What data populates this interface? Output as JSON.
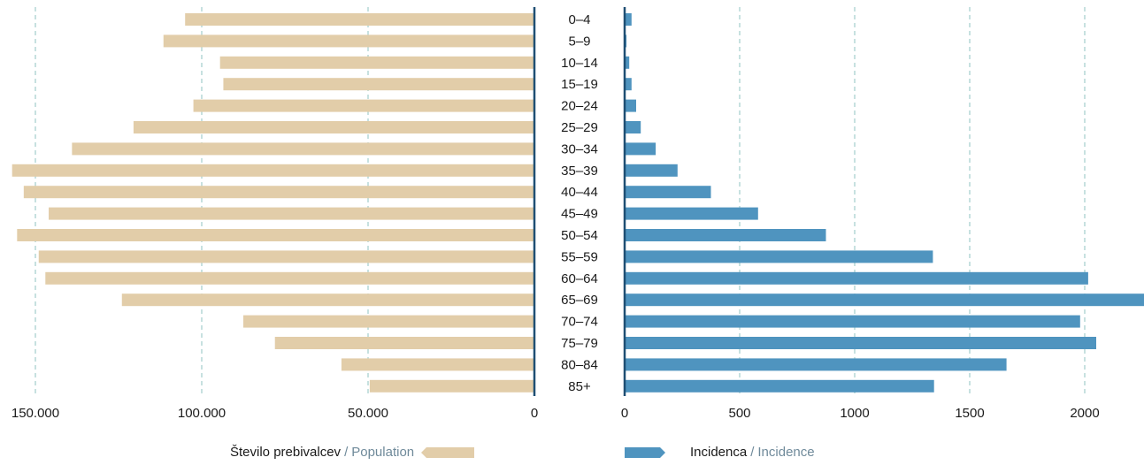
{
  "chart_data": [
    {
      "type": "bar",
      "orientation": "horizontal-reversed",
      "categories": [
        "0–4",
        "5–9",
        "10–14",
        "15–19",
        "20–24",
        "25–29",
        "30–34",
        "35–39",
        "40–44",
        "45–49",
        "50–54",
        "55–59",
        "60–64",
        "65–69",
        "70–74",
        "75–79",
        "80–84",
        "85+"
      ],
      "series": [
        {
          "values": [
            105000,
            111500,
            94500,
            93500,
            102500,
            120500,
            139000,
            157000,
            153500,
            146000,
            155500,
            149000,
            147000,
            124000,
            87500,
            78000,
            58000,
            49500
          ]
        }
      ],
      "xlim": [
        0,
        157000
      ],
      "xticks": [
        150000,
        100000,
        50000,
        0
      ],
      "xtick_labels": [
        "150.000",
        "100.000",
        "50.000",
        "0"
      ],
      "grid": "vertical-dashed",
      "color": "#e2cda9"
    },
    {
      "type": "bar",
      "orientation": "horizontal",
      "categories": [
        "0–4",
        "5–9",
        "10–14",
        "15–19",
        "20–24",
        "25–29",
        "30–34",
        "35–39",
        "40–44",
        "45–49",
        "50–54",
        "55–59",
        "60–64",
        "65–69",
        "70–74",
        "75–79",
        "80–84",
        "85+"
      ],
      "series": [
        {
          "values": [
            30,
            8,
            20,
            30,
            50,
            70,
            135,
            230,
            375,
            580,
            875,
            1340,
            2015,
            2260,
            1980,
            2050,
            1660,
            1345
          ]
        }
      ],
      "xlim": [
        0,
        2260
      ],
      "xticks": [
        0,
        500,
        1000,
        1500,
        2000
      ],
      "xtick_labels": [
        "0",
        "500",
        "1000",
        "1500",
        "2000"
      ],
      "grid": "vertical-dashed",
      "color": "#4f94bf"
    }
  ],
  "legend": {
    "population_sl": "Število prebivalcev",
    "population_en": "Population",
    "incidence_sl": "Incidenca",
    "incidence_en": "Incidence",
    "separator": "/"
  },
  "colors": {
    "population": "#e2cda9",
    "incidence": "#4f94bf",
    "axis": "#1f4f73",
    "grid": "#8fc3c0"
  }
}
